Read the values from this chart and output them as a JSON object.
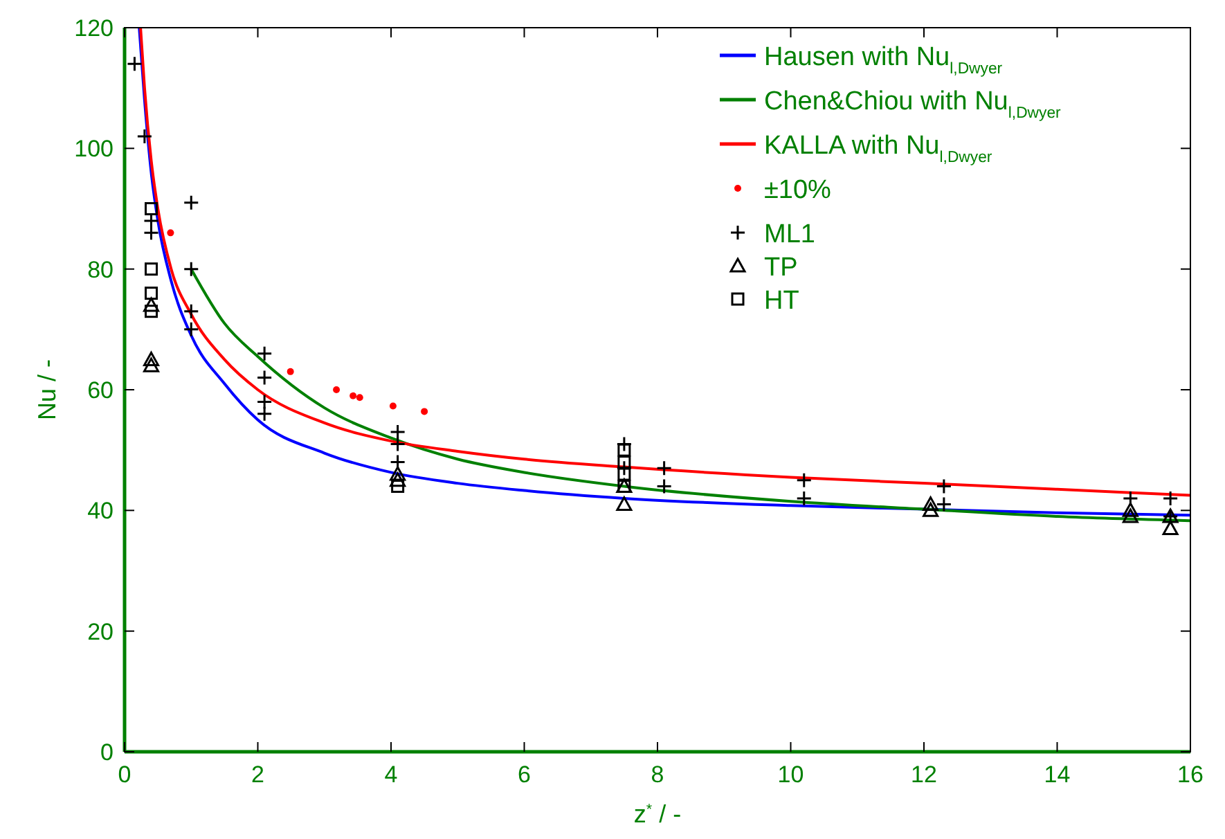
{
  "chart_data": {
    "type": "line",
    "xlabel": "z$^{*}$ / -",
    "ylabel": "Nu / -",
    "xlim": [
      0,
      16
    ],
    "ylim": [
      0,
      120
    ],
    "xticks": [
      0,
      2,
      4,
      6,
      8,
      10,
      12,
      14,
      16
    ],
    "yticks": [
      0,
      20,
      40,
      60,
      80,
      100,
      120
    ],
    "grid": false,
    "legend": "top right",
    "series": [
      {
        "name": "Hausen with Nu$_{l,Dwyer}$",
        "color": "#0000ff",
        "marker": "none",
        "x": [
          0.22,
          0.3,
          0.4,
          0.5,
          0.7,
          1,
          1.5,
          2,
          3,
          4,
          5,
          6,
          7.5,
          10,
          12,
          14,
          16
        ],
        "values": [
          120,
          108,
          96,
          88,
          78,
          69,
          61,
          55,
          49.5,
          46.3,
          44.5,
          43.3,
          42,
          40.8,
          40.2,
          39.6,
          39.2
        ]
      },
      {
        "name": "Chen&Chiou with Nu$_{l,Dwyer}$",
        "color": "#008000",
        "marker": "none",
        "x": [
          1,
          1.5,
          2,
          3,
          4,
          5,
          6,
          7.5,
          10,
          12,
          14,
          16
        ],
        "values": [
          80,
          71,
          65.5,
          57,
          52,
          48.5,
          46.3,
          44,
          41.5,
          40.2,
          39,
          38.3
        ]
      },
      {
        "name": "KALLA with Nu$_{l,Dwyer}$",
        "color": "#ff0000",
        "marker": "none",
        "x": [
          0.24,
          0.3,
          0.4,
          0.5,
          0.7,
          1,
          1.5,
          2,
          3,
          4,
          5,
          6,
          7.5,
          10,
          12,
          14,
          16
        ],
        "values": [
          120,
          110,
          98,
          90,
          80,
          72.5,
          65,
          60,
          54.5,
          51.5,
          49.8,
          48.5,
          47.2,
          45.5,
          44.5,
          43.5,
          42.5
        ]
      },
      {
        "name": "±10%",
        "type": "scatter",
        "color": "#ff0000",
        "marker": "circle",
        "x": [
          0.69,
          2.49,
          3.18,
          3.43,
          3.53,
          4.03,
          4.5
        ],
        "values": [
          86,
          63,
          60,
          59,
          58.7,
          57.3,
          56.4
        ]
      },
      {
        "name": "ML1",
        "type": "scatter",
        "color": "#000000",
        "marker": "cross",
        "x": [
          0.15,
          0.3,
          0.4,
          0.4,
          1,
          1,
          1,
          1,
          2.1,
          2.1,
          2.1,
          2.1,
          4.1,
          4.1,
          4.1,
          7.5,
          7.5,
          8.1,
          8.1,
          10.2,
          10.2,
          12.3,
          12.3,
          15.1,
          15.7,
          15.7
        ],
        "values": [
          114,
          102,
          88,
          86,
          91,
          80,
          73,
          70,
          66,
          62,
          58,
          56,
          53,
          51,
          48,
          51,
          47,
          47,
          44,
          45,
          42,
          44,
          41,
          42,
          42,
          39
        ]
      },
      {
        "name": "TP",
        "type": "scatter",
        "color": "#000000",
        "marker": "triangle",
        "x": [
          0.4,
          0.4,
          0.4,
          4.1,
          4.1,
          7.5,
          7.5,
          12.1,
          12.1,
          15.1,
          15.1,
          15.7,
          15.7
        ],
        "values": [
          65,
          64,
          74,
          45,
          46,
          41,
          44,
          40,
          41,
          39,
          40,
          37,
          39
        ]
      },
      {
        "name": "HT",
        "type": "scatter",
        "color": "#000000",
        "marker": "square",
        "x": [
          0.4,
          0.4,
          0.4,
          0.4,
          4.1,
          7.5,
          7.5,
          7.5,
          7.5
        ],
        "values": [
          90,
          80,
          76,
          73,
          44,
          50,
          48,
          46,
          44
        ]
      }
    ]
  }
}
